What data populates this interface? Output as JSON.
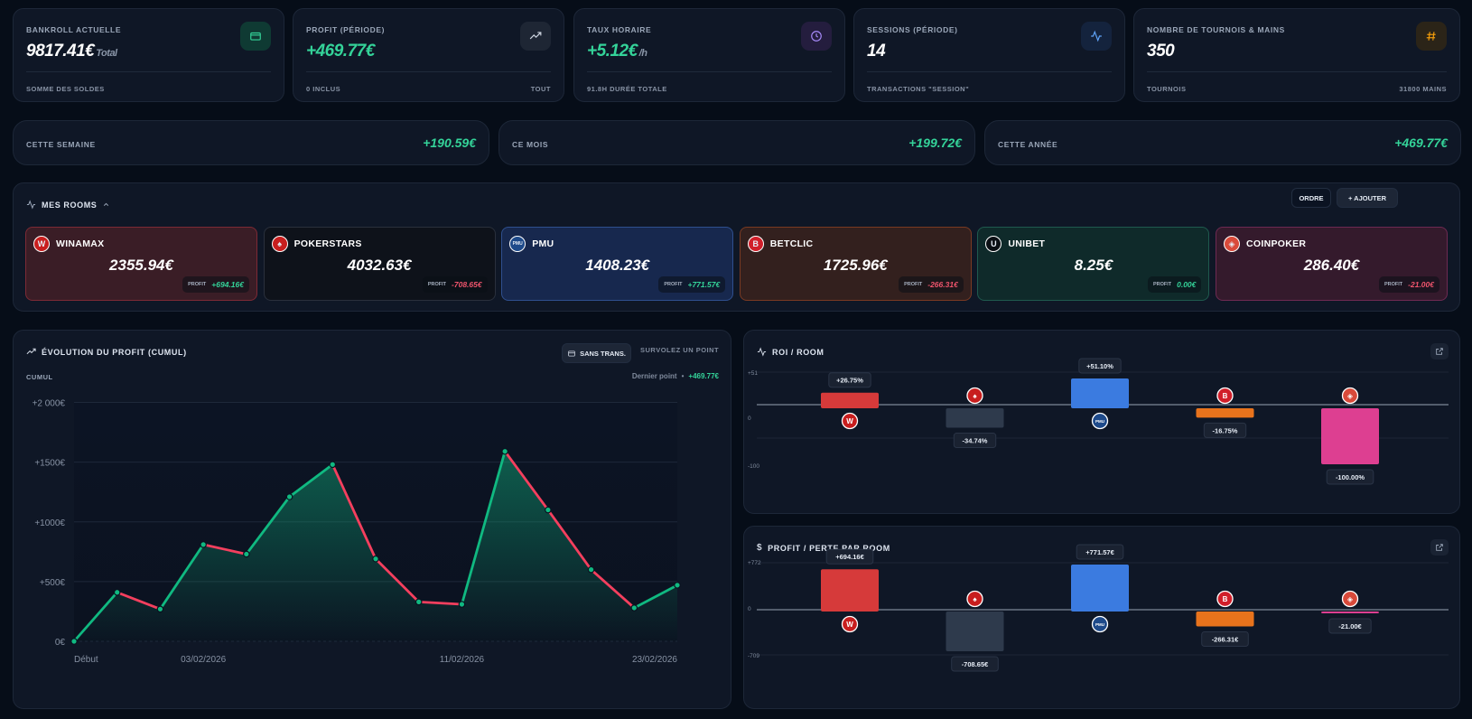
{
  "stats": [
    {
      "title": "BANKROLL ACTUELLE",
      "value": "9817.41€",
      "suffix": "Total",
      "foot_left": "SOMME DES SOLDES",
      "foot_right": "",
      "icon": "wallet-icon",
      "icon_color": "#34d399",
      "icon_bg": "#0f3a33",
      "green": false
    },
    {
      "title": "PROFIT (PÉRIODE)",
      "value": "+469.77€",
      "suffix": "",
      "foot_left": "0 INCLUS",
      "foot_right": "TOUT",
      "icon": "trending-up-icon",
      "icon_color": "#cfd6e2",
      "icon_bg": "#1e2634",
      "green": true
    },
    {
      "title": "TAUX HORAIRE",
      "value": "+5.12€",
      "suffix": "/h",
      "foot_left": "91.8H DURÉE TOTALE",
      "foot_right": "",
      "icon": "clock-icon",
      "icon_color": "#a78bfa",
      "icon_bg": "#241d3e",
      "green": true
    },
    {
      "title": "SESSIONS (PÉRIODE)",
      "value": "14",
      "suffix": "",
      "foot_left": "TRANSACTIONS \"SESSION\"",
      "foot_right": "",
      "icon": "activity-icon",
      "icon_color": "#60a5fa",
      "icon_bg": "#14233d",
      "green": false
    },
    {
      "title": "NOMBRE DE TOURNOIS & MAINS",
      "value": "350",
      "suffix": "",
      "foot_left": "TOURNOIS",
      "foot_right": "31800 MAINS",
      "icon": "hash-icon",
      "icon_color": "#f59e0b",
      "icon_bg": "#2b2418",
      "green": false
    }
  ],
  "periods": [
    {
      "label": "CETTE SEMAINE",
      "value": "+190.59€"
    },
    {
      "label": "CE MOIS",
      "value": "+199.72€"
    },
    {
      "label": "CETTE ANNÉE",
      "value": "+469.77€"
    }
  ],
  "rooms_panel": {
    "title": "MES ROOMS",
    "order_label": "ORDRE",
    "add_label": "+ AJOUTER",
    "profit_label": "PROFIT"
  },
  "rooms": [
    {
      "name": "WINAMAX",
      "amount": "2355.94€",
      "profit": "+694.16€",
      "positive": true,
      "logo": "W",
      "logo_bg": "#c81e1e",
      "bg": "#3a1d26",
      "border": "#7d2a35"
    },
    {
      "name": "POKERSTARS",
      "amount": "4032.63€",
      "profit": "-708.65€",
      "positive": false,
      "logo": "♠",
      "logo_bg": "#c81e1e",
      "bg": "#0e121a",
      "border": "#2a303c"
    },
    {
      "name": "PMU",
      "amount": "1408.23€",
      "profit": "+771.57€",
      "positive": true,
      "logo": "PMU",
      "logo_bg": "#1e4a8a",
      "bg": "#17284e",
      "border": "#2f4f8e"
    },
    {
      "name": "BETCLIC",
      "amount": "1725.96€",
      "profit": "-266.31€",
      "positive": false,
      "logo": "B",
      "logo_bg": "#d11f2a",
      "bg": "#33201e",
      "border": "#7a3a22"
    },
    {
      "name": "UNIBET",
      "amount": "8.25€",
      "profit": "0.00€",
      "positive": true,
      "logo": "U",
      "logo_bg": "#0b0f14",
      "bg": "#0f2a2a",
      "border": "#1f5a4e"
    },
    {
      "name": "COINPOKER",
      "amount": "286.40€",
      "profit": "-21.00€",
      "positive": false,
      "logo": "◈",
      "logo_bg": "#d94a3a",
      "bg": "#341a2c",
      "border": "#6e2a52"
    }
  ],
  "profit_chart": {
    "title": "ÉVOLUTION DU PROFIT (CUMUL)",
    "cumul_label": "CUMUL",
    "toggle_label": "SANS TRANS.",
    "hover_hint": "SURVOLEZ UN POINT",
    "last_point_label": "Dernier point",
    "last_point_value": "+469.77€"
  },
  "roi_chart": {
    "title": "ROI / ROOM"
  },
  "pl_chart": {
    "title": "PROFIT / PERTE PAR ROOM"
  },
  "chart_data": [
    {
      "type": "area",
      "title": "ÉVOLUTION DU PROFIT (CUMUL)",
      "ylabel": "CUMUL",
      "ylim": [
        0,
        2200
      ],
      "yticks": [
        0,
        500,
        1000,
        1500,
        2000
      ],
      "ytick_labels": [
        "0€",
        "+500€",
        "+1000€",
        "+1500€",
        "+2 000€"
      ],
      "x_tick_labels": [
        "Début",
        "03/02/2026",
        "11/02/2026",
        "23/02/2026"
      ],
      "x_tick_points": [
        0,
        3,
        9,
        14
      ],
      "values": [
        0,
        410,
        270,
        810,
        730,
        1210,
        1480,
        690,
        330,
        310,
        1590,
        1100,
        600,
        280,
        470
      ],
      "up_color": "#10b981",
      "down_color": "#f43f5e"
    },
    {
      "type": "bar",
      "title": "ROI / ROOM",
      "categories": [
        "WINAMAX",
        "POKERSTARS",
        "PMU",
        "BETCLIC",
        "COINPOKER"
      ],
      "values": [
        26.75,
        -34.74,
        51.1,
        -16.75,
        -100.0
      ],
      "labels": [
        "+26.75%",
        "-34.74%",
        "+51.10%",
        "-16.75%",
        "-100.00%"
      ],
      "ytick_labels": [
        "+51",
        "0",
        "-100"
      ],
      "colors": [
        "#d63a3a",
        "#2e3a4c",
        "#3b7be0",
        "#e8731c",
        "#dd3f91"
      ]
    },
    {
      "type": "bar",
      "title": "PROFIT / PERTE PAR ROOM",
      "categories": [
        "WINAMAX",
        "POKERSTARS",
        "PMU",
        "BETCLIC",
        "COINPOKER"
      ],
      "values": [
        694.16,
        -708.65,
        771.57,
        -266.31,
        -21.0
      ],
      "labels": [
        "+694.16€",
        "-708.65€",
        "+771.57€",
        "-266.31€",
        "-21.00€"
      ],
      "ytick_labels": [
        "+772",
        "0",
        "-709"
      ],
      "colors": [
        "#d63a3a",
        "#2e3a4c",
        "#3b7be0",
        "#e8731c",
        "#dd3f91"
      ]
    }
  ]
}
